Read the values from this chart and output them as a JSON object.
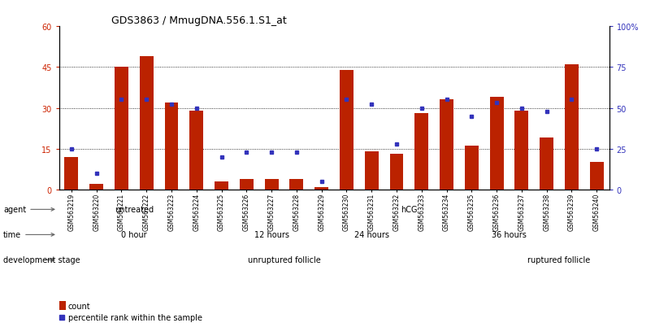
{
  "title": "GDS3863 / MmugDNA.556.1.S1_at",
  "samples": [
    "GSM563219",
    "GSM563220",
    "GSM563221",
    "GSM563222",
    "GSM563223",
    "GSM563224",
    "GSM563225",
    "GSM563226",
    "GSM563227",
    "GSM563228",
    "GSM563229",
    "GSM563230",
    "GSM563231",
    "GSM563232",
    "GSM563233",
    "GSM563234",
    "GSM563235",
    "GSM563236",
    "GSM563237",
    "GSM563238",
    "GSM563239",
    "GSM563240"
  ],
  "counts": [
    12,
    2,
    45,
    49,
    32,
    29,
    3,
    4,
    4,
    4,
    1,
    44,
    14,
    13,
    28,
    33,
    16,
    34,
    29,
    19,
    46,
    10
  ],
  "percentile": [
    25,
    10,
    55,
    55,
    52,
    50,
    20,
    23,
    23,
    23,
    5,
    55,
    52,
    28,
    50,
    55,
    45,
    53,
    50,
    48,
    55,
    25
  ],
  "bar_color": "#bb2200",
  "dot_color": "#3333bb",
  "ylim_left": [
    0,
    60
  ],
  "ylim_right": [
    0,
    100
  ],
  "yticks_left": [
    0,
    15,
    30,
    45,
    60
  ],
  "yticks_right": [
    0,
    25,
    50,
    75,
    100
  ],
  "agent_groups": [
    {
      "label": "untreated",
      "start": 0,
      "end": 6,
      "color": "#99dd99"
    },
    {
      "label": "hCG",
      "start": 6,
      "end": 22,
      "color": "#44bb44"
    }
  ],
  "time_groups": [
    {
      "label": "0 hour",
      "start": 0,
      "end": 6,
      "color": "#ddddff"
    },
    {
      "label": "12 hours",
      "start": 6,
      "end": 11,
      "color": "#bbbbee"
    },
    {
      "label": "24 hours",
      "start": 11,
      "end": 14,
      "color": "#9999dd"
    },
    {
      "label": "36 hours",
      "start": 14,
      "end": 22,
      "color": "#7777cc"
    }
  ],
  "dev_groups": [
    {
      "label": "unruptured follicle",
      "start": 0,
      "end": 18,
      "color": "#ffcccc"
    },
    {
      "label": "ruptured follicle",
      "start": 18,
      "end": 22,
      "color": "#cc5555"
    }
  ],
  "bg_color": "#ffffff"
}
